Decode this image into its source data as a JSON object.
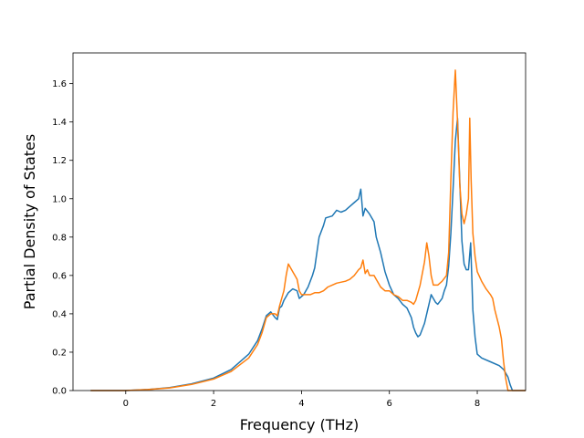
{
  "chart_data": {
    "type": "line",
    "title": "",
    "xlabel": "Frequency (THz)",
    "ylabel": "Partial Density of States",
    "xlim": [
      -1.2,
      9.1
    ],
    "ylim": [
      0,
      1.76
    ],
    "xticks": [
      0,
      2,
      4,
      6,
      8
    ],
    "xtick_labels": [
      "0",
      "2",
      "4",
      "6",
      "8"
    ],
    "yticks": [
      0.0,
      0.2,
      0.4,
      0.6,
      0.8,
      1.0,
      1.2,
      1.4,
      1.6
    ],
    "ytick_labels": [
      "0.0",
      "0.2",
      "0.4",
      "0.6",
      "0.8",
      "1.0",
      "1.2",
      "1.4",
      "1.6"
    ],
    "grid": false,
    "legend": "none",
    "series": [
      {
        "color": "#1f77b4",
        "points": [
          [
            -0.8,
            0
          ],
          [
            0,
            0
          ],
          [
            0.5,
            0.005
          ],
          [
            1.0,
            0.015
          ],
          [
            1.5,
            0.035
          ],
          [
            2.0,
            0.065
          ],
          [
            2.4,
            0.11
          ],
          [
            2.8,
            0.19
          ],
          [
            3.0,
            0.26
          ],
          [
            3.1,
            0.32
          ],
          [
            3.2,
            0.39
          ],
          [
            3.3,
            0.41
          ],
          [
            3.4,
            0.38
          ],
          [
            3.45,
            0.37
          ],
          [
            3.5,
            0.43
          ],
          [
            3.55,
            0.44
          ],
          [
            3.6,
            0.47
          ],
          [
            3.7,
            0.51
          ],
          [
            3.8,
            0.53
          ],
          [
            3.9,
            0.52
          ],
          [
            3.95,
            0.48
          ],
          [
            4.05,
            0.5
          ],
          [
            4.15,
            0.54
          ],
          [
            4.25,
            0.6
          ],
          [
            4.3,
            0.64
          ],
          [
            4.35,
            0.72
          ],
          [
            4.4,
            0.8
          ],
          [
            4.5,
            0.86
          ],
          [
            4.55,
            0.9
          ],
          [
            4.7,
            0.91
          ],
          [
            4.8,
            0.94
          ],
          [
            4.9,
            0.93
          ],
          [
            5.0,
            0.94
          ],
          [
            5.1,
            0.96
          ],
          [
            5.2,
            0.98
          ],
          [
            5.3,
            1.0
          ],
          [
            5.35,
            1.05
          ],
          [
            5.4,
            0.91
          ],
          [
            5.45,
            0.95
          ],
          [
            5.55,
            0.92
          ],
          [
            5.65,
            0.88
          ],
          [
            5.7,
            0.8
          ],
          [
            5.8,
            0.72
          ],
          [
            5.9,
            0.62
          ],
          [
            6.0,
            0.55
          ],
          [
            6.1,
            0.5
          ],
          [
            6.2,
            0.48
          ],
          [
            6.3,
            0.45
          ],
          [
            6.4,
            0.43
          ],
          [
            6.5,
            0.38
          ],
          [
            6.55,
            0.33
          ],
          [
            6.6,
            0.3
          ],
          [
            6.65,
            0.28
          ],
          [
            6.7,
            0.29
          ],
          [
            6.8,
            0.35
          ],
          [
            6.9,
            0.45
          ],
          [
            6.95,
            0.5
          ],
          [
            7.0,
            0.48
          ],
          [
            7.05,
            0.46
          ],
          [
            7.1,
            0.45
          ],
          [
            7.2,
            0.48
          ],
          [
            7.25,
            0.52
          ],
          [
            7.3,
            0.55
          ],
          [
            7.35,
            0.65
          ],
          [
            7.4,
            0.82
          ],
          [
            7.45,
            1.05
          ],
          [
            7.5,
            1.3
          ],
          [
            7.55,
            1.42
          ],
          [
            7.6,
            1.1
          ],
          [
            7.65,
            0.78
          ],
          [
            7.7,
            0.66
          ],
          [
            7.75,
            0.63
          ],
          [
            7.8,
            0.63
          ],
          [
            7.85,
            0.77
          ],
          [
            7.9,
            0.42
          ],
          [
            7.95,
            0.28
          ],
          [
            8.0,
            0.19
          ],
          [
            8.1,
            0.17
          ],
          [
            8.3,
            0.15
          ],
          [
            8.5,
            0.13
          ],
          [
            8.6,
            0.11
          ],
          [
            8.7,
            0.07
          ],
          [
            8.75,
            0.03
          ],
          [
            8.8,
            0
          ],
          [
            9.1,
            0
          ]
        ]
      },
      {
        "color": "#ff7f0e",
        "points": [
          [
            -0.8,
            0
          ],
          [
            0,
            0
          ],
          [
            0.5,
            0.005
          ],
          [
            1.0,
            0.014
          ],
          [
            1.5,
            0.032
          ],
          [
            2.0,
            0.06
          ],
          [
            2.4,
            0.1
          ],
          [
            2.8,
            0.17
          ],
          [
            3.0,
            0.24
          ],
          [
            3.1,
            0.3
          ],
          [
            3.2,
            0.38
          ],
          [
            3.3,
            0.4
          ],
          [
            3.4,
            0.4
          ],
          [
            3.45,
            0.39
          ],
          [
            3.5,
            0.44
          ],
          [
            3.55,
            0.48
          ],
          [
            3.6,
            0.52
          ],
          [
            3.65,
            0.6
          ],
          [
            3.7,
            0.66
          ],
          [
            3.75,
            0.64
          ],
          [
            3.8,
            0.62
          ],
          [
            3.85,
            0.6
          ],
          [
            3.9,
            0.58
          ],
          [
            3.95,
            0.52
          ],
          [
            4.0,
            0.5
          ],
          [
            4.1,
            0.5
          ],
          [
            4.2,
            0.5
          ],
          [
            4.3,
            0.51
          ],
          [
            4.4,
            0.51
          ],
          [
            4.5,
            0.52
          ],
          [
            4.6,
            0.54
          ],
          [
            4.7,
            0.55
          ],
          [
            4.8,
            0.56
          ],
          [
            5.0,
            0.57
          ],
          [
            5.1,
            0.58
          ],
          [
            5.2,
            0.6
          ],
          [
            5.3,
            0.63
          ],
          [
            5.35,
            0.64
          ],
          [
            5.4,
            0.68
          ],
          [
            5.45,
            0.61
          ],
          [
            5.5,
            0.63
          ],
          [
            5.55,
            0.6
          ],
          [
            5.65,
            0.6
          ],
          [
            5.7,
            0.58
          ],
          [
            5.75,
            0.56
          ],
          [
            5.8,
            0.54
          ],
          [
            5.9,
            0.52
          ],
          [
            6.0,
            0.52
          ],
          [
            6.1,
            0.5
          ],
          [
            6.2,
            0.49
          ],
          [
            6.3,
            0.47
          ],
          [
            6.4,
            0.47
          ],
          [
            6.5,
            0.46
          ],
          [
            6.55,
            0.45
          ],
          [
            6.6,
            0.47
          ],
          [
            6.7,
            0.55
          ],
          [
            6.8,
            0.67
          ],
          [
            6.85,
            0.77
          ],
          [
            6.9,
            0.7
          ],
          [
            6.95,
            0.6
          ],
          [
            7.0,
            0.55
          ],
          [
            7.1,
            0.55
          ],
          [
            7.2,
            0.57
          ],
          [
            7.3,
            0.6
          ],
          [
            7.35,
            0.72
          ],
          [
            7.4,
            1.1
          ],
          [
            7.45,
            1.45
          ],
          [
            7.5,
            1.67
          ],
          [
            7.55,
            1.4
          ],
          [
            7.6,
            1.08
          ],
          [
            7.65,
            0.92
          ],
          [
            7.7,
            0.87
          ],
          [
            7.75,
            0.92
          ],
          [
            7.8,
            1.0
          ],
          [
            7.83,
            1.42
          ],
          [
            7.86,
            1.1
          ],
          [
            7.9,
            0.82
          ],
          [
            7.95,
            0.7
          ],
          [
            8.0,
            0.62
          ],
          [
            8.1,
            0.57
          ],
          [
            8.2,
            0.53
          ],
          [
            8.3,
            0.5
          ],
          [
            8.35,
            0.48
          ],
          [
            8.4,
            0.42
          ],
          [
            8.5,
            0.33
          ],
          [
            8.55,
            0.27
          ],
          [
            8.6,
            0.15
          ],
          [
            8.65,
            0.06
          ],
          [
            8.7,
            0
          ],
          [
            9.1,
            0
          ]
        ]
      }
    ]
  }
}
